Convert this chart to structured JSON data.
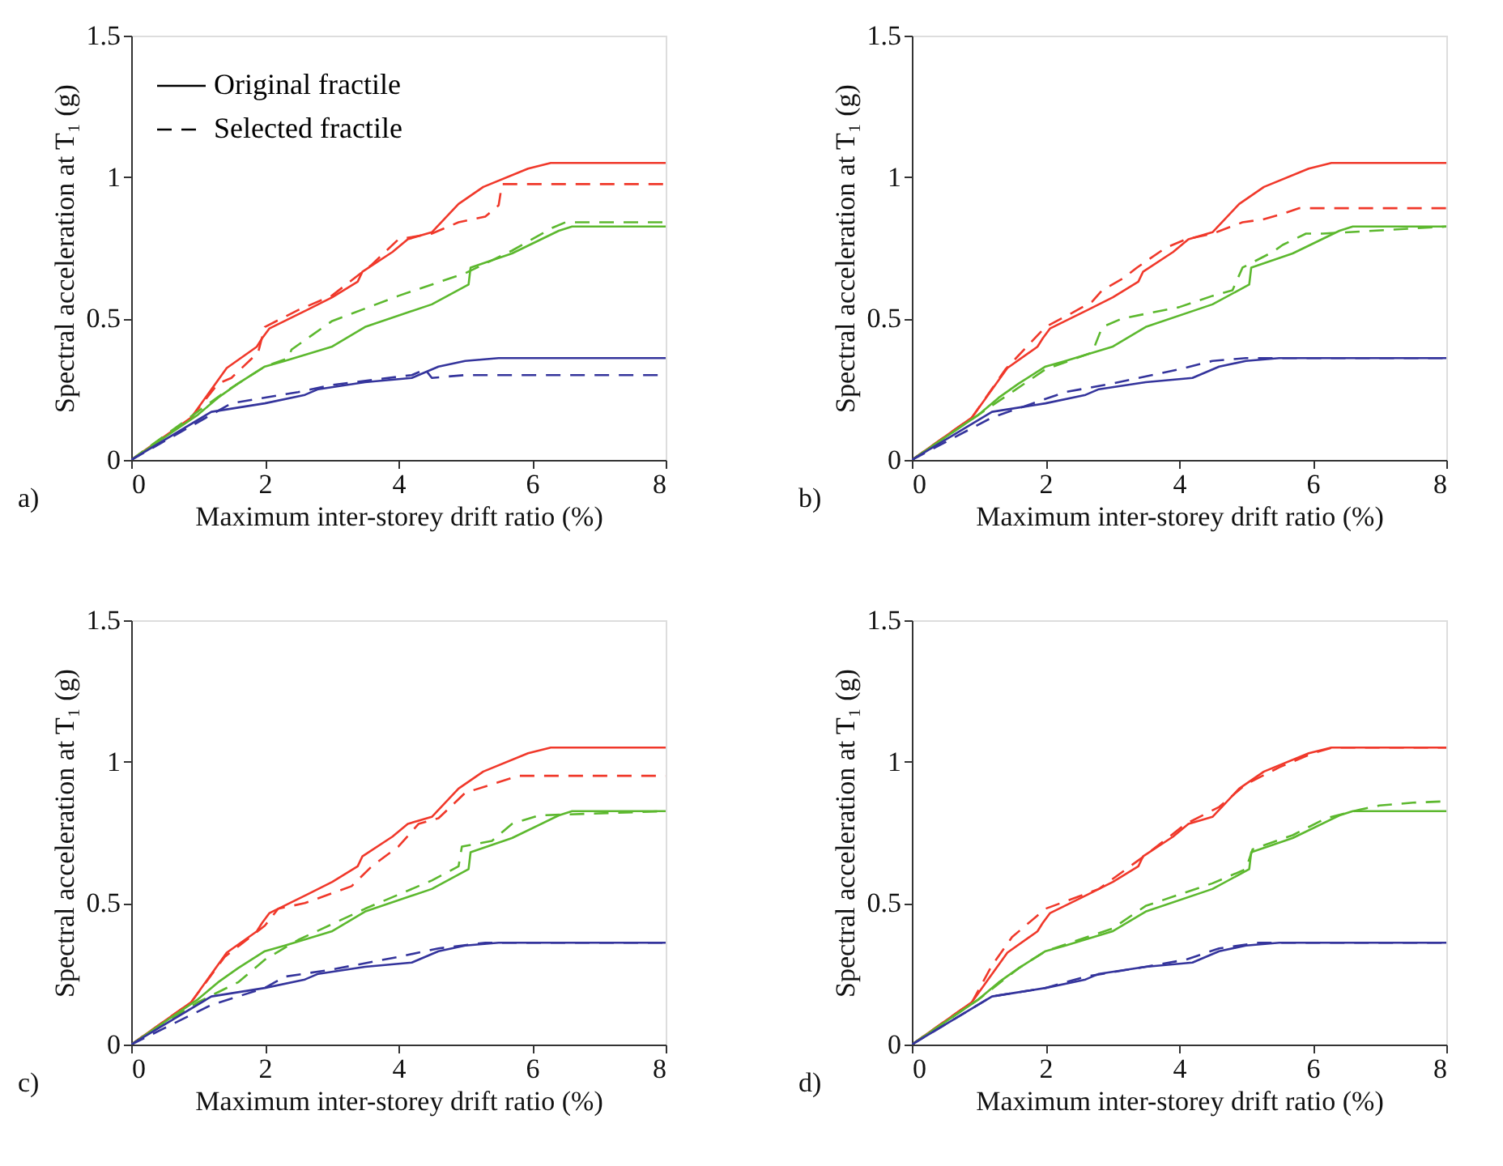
{
  "chart_data": [
    {
      "type": "line",
      "xlabel": "Maximum inter-storey drift ratio (%)",
      "ylabel": "Spectral acceleration at T₁ (g)",
      "xlim": [
        0,
        8
      ],
      "xticks": [
        0,
        2,
        4,
        6,
        8
      ],
      "ylim": [
        0,
        1.5
      ],
      "yticks": [
        0,
        0.5,
        1,
        1.5
      ],
      "grid": false,
      "annotations": [
        "a)",
        "Original fractile",
        "Selected fractile"
      ],
      "series": [
        {
          "color": "#f0382a",
          "line_style": "solid",
          "x": [
            0,
            0.9,
            1.05,
            1.43,
            1.88,
            1.96,
            2.07,
            2.63,
            3.01,
            3.39,
            3.46,
            3.91,
            4.14,
            4.5,
            4.9,
            5.27,
            5.94,
            6.28,
            8
          ],
          "values": [
            0,
            0.15,
            0.2,
            0.325,
            0.4,
            0.43,
            0.465,
            0.53,
            0.575,
            0.63,
            0.665,
            0.735,
            0.78,
            0.805,
            0.905,
            0.965,
            1.03,
            1.05,
            1.05
          ]
        },
        {
          "color": "#f0382a",
          "line_style": "dashed",
          "x": [
            0,
            0.9,
            1.3,
            1.5,
            1.9,
            2.0,
            2.5,
            3.0,
            3.6,
            4.0,
            4.5,
            4.9,
            5.3,
            5.5,
            5.55,
            8
          ],
          "values": [
            0,
            0.15,
            0.27,
            0.29,
            0.38,
            0.47,
            0.53,
            0.58,
            0.69,
            0.78,
            0.8,
            0.84,
            0.86,
            0.9,
            0.975,
            0.975
          ]
        },
        {
          "color": "#5cb82e",
          "line_style": "solid",
          "x": [
            0,
            1.0,
            1.3,
            1.6,
            2.0,
            2.3,
            3.0,
            3.5,
            4.5,
            5.05,
            5.08,
            5.7,
            6.4,
            6.6,
            8
          ],
          "values": [
            0,
            0.16,
            0.22,
            0.27,
            0.33,
            0.35,
            0.4,
            0.47,
            0.55,
            0.62,
            0.68,
            0.73,
            0.81,
            0.825,
            0.825
          ]
        },
        {
          "color": "#5cb82e",
          "line_style": "dashed",
          "x": [
            0,
            1.4,
            2.0,
            2.35,
            2.4,
            3.0,
            4.0,
            5.0,
            5.7,
            6.3,
            6.5,
            8
          ],
          "values": [
            0,
            0.24,
            0.33,
            0.36,
            0.39,
            0.49,
            0.58,
            0.66,
            0.74,
            0.82,
            0.84,
            0.84
          ]
        },
        {
          "color": "#34349c",
          "line_style": "solid",
          "x": [
            0,
            1.2,
            2.0,
            2.6,
            2.8,
            3.5,
            4.2,
            4.6,
            5.0,
            5.5,
            8
          ],
          "values": [
            0,
            0.17,
            0.2,
            0.23,
            0.25,
            0.275,
            0.29,
            0.33,
            0.35,
            0.36,
            0.36
          ]
        },
        {
          "color": "#34349c",
          "line_style": "dashed",
          "x": [
            0,
            1.5,
            2.5,
            3.0,
            4.2,
            4.4,
            4.5,
            5.0,
            8
          ],
          "values": [
            0,
            0.2,
            0.24,
            0.265,
            0.3,
            0.32,
            0.29,
            0.3,
            0.3
          ]
        }
      ]
    },
    {
      "type": "line",
      "xlabel": "Maximum inter-storey drift ratio (%)",
      "ylabel": "Spectral acceleration at T₁ (g)",
      "xlim": [
        0,
        8
      ],
      "xticks": [
        0,
        2,
        4,
        6,
        8
      ],
      "ylim": [
        0,
        1.5
      ],
      "yticks": [
        0,
        0.5,
        1,
        1.5
      ],
      "grid": false,
      "annotations": [
        "b)"
      ],
      "series": [
        {
          "color": "#f0382a",
          "line_style": "solid",
          "x": [
            0,
            0.9,
            1.05,
            1.43,
            1.88,
            1.96,
            2.07,
            2.63,
            3.01,
            3.39,
            3.46,
            3.91,
            4.14,
            4.5,
            4.9,
            5.27,
            5.94,
            6.28,
            8
          ],
          "values": [
            0,
            0.15,
            0.2,
            0.325,
            0.4,
            0.43,
            0.465,
            0.53,
            0.575,
            0.63,
            0.665,
            0.735,
            0.78,
            0.805,
            0.905,
            0.965,
            1.03,
            1.05,
            1.05
          ]
        },
        {
          "color": "#f0382a",
          "line_style": "dashed",
          "x": [
            0,
            0.9,
            1.4,
            2.0,
            2.4,
            2.7,
            2.85,
            3.15,
            3.37,
            3.8,
            4.1,
            4.5,
            4.95,
            5.25,
            5.55,
            5.8,
            8
          ],
          "values": [
            0,
            0.15,
            0.32,
            0.47,
            0.52,
            0.56,
            0.6,
            0.64,
            0.68,
            0.75,
            0.78,
            0.8,
            0.84,
            0.85,
            0.87,
            0.89,
            0.89
          ]
        },
        {
          "color": "#5cb82e",
          "line_style": "solid",
          "x": [
            0,
            1.0,
            1.3,
            1.6,
            2.0,
            2.3,
            3.0,
            3.5,
            4.5,
            5.05,
            5.08,
            5.7,
            6.4,
            6.6,
            8
          ],
          "values": [
            0,
            0.16,
            0.22,
            0.27,
            0.33,
            0.35,
            0.4,
            0.47,
            0.55,
            0.62,
            0.68,
            0.73,
            0.81,
            0.825,
            0.825
          ]
        },
        {
          "color": "#5cb82e",
          "line_style": "dashed",
          "x": [
            0,
            1.0,
            2.0,
            2.7,
            2.85,
            3.15,
            4.0,
            4.5,
            4.8,
            4.95,
            5.4,
            5.55,
            5.9,
            6.15,
            8
          ],
          "values": [
            0,
            0.16,
            0.32,
            0.38,
            0.47,
            0.5,
            0.54,
            0.58,
            0.6,
            0.68,
            0.735,
            0.76,
            0.8,
            0.8,
            0.825
          ]
        },
        {
          "color": "#34349c",
          "line_style": "solid",
          "x": [
            0,
            1.2,
            2.0,
            2.6,
            2.8,
            3.5,
            4.2,
            4.6,
            5.0,
            5.5,
            8
          ],
          "values": [
            0,
            0.17,
            0.2,
            0.23,
            0.25,
            0.275,
            0.29,
            0.33,
            0.35,
            0.36,
            0.36
          ]
        },
        {
          "color": "#34349c",
          "line_style": "dashed",
          "x": [
            0,
            1.2,
            2.3,
            3.0,
            4.0,
            4.5,
            5.0,
            8
          ],
          "values": [
            0,
            0.15,
            0.24,
            0.27,
            0.32,
            0.35,
            0.36,
            0.36
          ]
        }
      ]
    },
    {
      "type": "line",
      "xlabel": "Maximum inter-storey drift ratio (%)",
      "ylabel": "Spectral acceleration at T₁ (g)",
      "xlim": [
        0,
        8
      ],
      "xticks": [
        0,
        2,
        4,
        6,
        8
      ],
      "ylim": [
        0,
        1.5
      ],
      "yticks": [
        0,
        0.5,
        1,
        1.5
      ],
      "grid": false,
      "annotations": [
        "c)"
      ],
      "series": [
        {
          "color": "#f0382a",
          "line_style": "solid",
          "x": [
            0,
            0.9,
            1.05,
            1.43,
            1.88,
            1.96,
            2.07,
            2.63,
            3.01,
            3.39,
            3.46,
            3.91,
            4.14,
            4.5,
            4.9,
            5.27,
            5.94,
            6.28,
            8
          ],
          "values": [
            0,
            0.15,
            0.2,
            0.325,
            0.4,
            0.43,
            0.465,
            0.53,
            0.575,
            0.63,
            0.665,
            0.735,
            0.78,
            0.805,
            0.905,
            0.965,
            1.03,
            1.05,
            1.05
          ]
        },
        {
          "color": "#f0382a",
          "line_style": "dashed",
          "x": [
            0,
            0.9,
            1.4,
            2.0,
            2.2,
            2.6,
            3.3,
            3.6,
            4.0,
            4.3,
            4.6,
            5.0,
            5.4,
            5.8,
            8
          ],
          "values": [
            0,
            0.15,
            0.31,
            0.42,
            0.48,
            0.5,
            0.56,
            0.63,
            0.7,
            0.78,
            0.8,
            0.89,
            0.92,
            0.95,
            0.95
          ]
        },
        {
          "color": "#5cb82e",
          "line_style": "solid",
          "x": [
            0,
            1.0,
            1.3,
            1.6,
            2.0,
            2.3,
            3.0,
            3.5,
            4.5,
            5.05,
            5.08,
            5.7,
            6.4,
            6.6,
            8
          ],
          "values": [
            0,
            0.16,
            0.22,
            0.27,
            0.33,
            0.35,
            0.4,
            0.47,
            0.55,
            0.62,
            0.68,
            0.73,
            0.81,
            0.825,
            0.825
          ]
        },
        {
          "color": "#5cb82e",
          "line_style": "dashed",
          "x": [
            0,
            1.0,
            1.6,
            2.0,
            2.5,
            3.5,
            4.5,
            4.9,
            4.95,
            5.4,
            5.7,
            6.1,
            8
          ],
          "values": [
            0,
            0.15,
            0.22,
            0.3,
            0.37,
            0.48,
            0.58,
            0.63,
            0.7,
            0.72,
            0.78,
            0.81,
            0.825
          ]
        },
        {
          "color": "#34349c",
          "line_style": "solid",
          "x": [
            0,
            1.2,
            2.0,
            2.6,
            2.8,
            3.5,
            4.2,
            4.6,
            5.0,
            5.5,
            8
          ],
          "values": [
            0,
            0.17,
            0.2,
            0.23,
            0.25,
            0.275,
            0.29,
            0.33,
            0.35,
            0.36,
            0.36
          ]
        },
        {
          "color": "#34349c",
          "line_style": "dashed",
          "x": [
            0,
            1.2,
            2.0,
            2.3,
            3.0,
            4.0,
            4.6,
            5.3,
            8
          ],
          "values": [
            0,
            0.14,
            0.2,
            0.24,
            0.265,
            0.31,
            0.34,
            0.36,
            0.36
          ]
        }
      ]
    },
    {
      "type": "line",
      "xlabel": "Maximum inter-storey drift ratio (%)",
      "ylabel": "Spectral acceleration at T₁ (g)",
      "xlim": [
        0,
        8
      ],
      "xticks": [
        0,
        2,
        4,
        6,
        8
      ],
      "ylim": [
        0,
        1.5
      ],
      "yticks": [
        0,
        0.5,
        1,
        1.5
      ],
      "grid": false,
      "annotations": [
        "d)"
      ],
      "series": [
        {
          "color": "#f0382a",
          "line_style": "solid",
          "x": [
            0,
            0.9,
            1.05,
            1.43,
            1.88,
            1.96,
            2.07,
            2.63,
            3.01,
            3.39,
            3.46,
            3.91,
            4.14,
            4.5,
            4.9,
            5.27,
            5.94,
            6.28,
            8
          ],
          "values": [
            0,
            0.15,
            0.2,
            0.325,
            0.4,
            0.43,
            0.465,
            0.53,
            0.575,
            0.63,
            0.665,
            0.735,
            0.78,
            0.805,
            0.905,
            0.965,
            1.03,
            1.05,
            1.05
          ]
        },
        {
          "color": "#f0382a",
          "line_style": "dashed",
          "x": [
            0,
            0.9,
            1.2,
            1.5,
            2.0,
            2.8,
            3.5,
            4.1,
            4.6,
            5.0,
            5.5,
            6.0,
            6.3,
            8
          ],
          "values": [
            0,
            0.15,
            0.28,
            0.38,
            0.48,
            0.55,
            0.67,
            0.78,
            0.84,
            0.92,
            0.98,
            1.03,
            1.05,
            1.05
          ]
        },
        {
          "color": "#5cb82e",
          "line_style": "solid",
          "x": [
            0,
            1.0,
            1.3,
            1.6,
            2.0,
            2.3,
            3.0,
            3.5,
            4.5,
            5.05,
            5.08,
            5.7,
            6.4,
            6.6,
            8
          ],
          "values": [
            0,
            0.16,
            0.22,
            0.27,
            0.33,
            0.35,
            0.4,
            0.47,
            0.55,
            0.62,
            0.68,
            0.73,
            0.81,
            0.825,
            0.825
          ]
        },
        {
          "color": "#5cb82e",
          "line_style": "dashed",
          "x": [
            0,
            1.0,
            1.6,
            2.0,
            3.0,
            3.5,
            4.5,
            5.0,
            5.1,
            5.7,
            6.2,
            6.7,
            7.0,
            7.5,
            8
          ],
          "values": [
            0,
            0.16,
            0.27,
            0.33,
            0.41,
            0.49,
            0.57,
            0.62,
            0.69,
            0.74,
            0.8,
            0.83,
            0.845,
            0.855,
            0.86
          ]
        },
        {
          "color": "#34349c",
          "line_style": "solid",
          "x": [
            0,
            1.2,
            2.0,
            2.6,
            2.8,
            3.5,
            4.2,
            4.6,
            5.0,
            5.5,
            8
          ],
          "values": [
            0,
            0.17,
            0.2,
            0.23,
            0.25,
            0.275,
            0.29,
            0.33,
            0.35,
            0.36,
            0.36
          ]
        },
        {
          "color": "#34349c",
          "line_style": "dashed",
          "x": [
            0,
            1.2,
            2.0,
            2.6,
            3.5,
            4.1,
            4.6,
            5.2,
            8
          ],
          "values": [
            0,
            0.17,
            0.2,
            0.24,
            0.275,
            0.3,
            0.34,
            0.36,
            0.36
          ]
        }
      ]
    }
  ]
}
